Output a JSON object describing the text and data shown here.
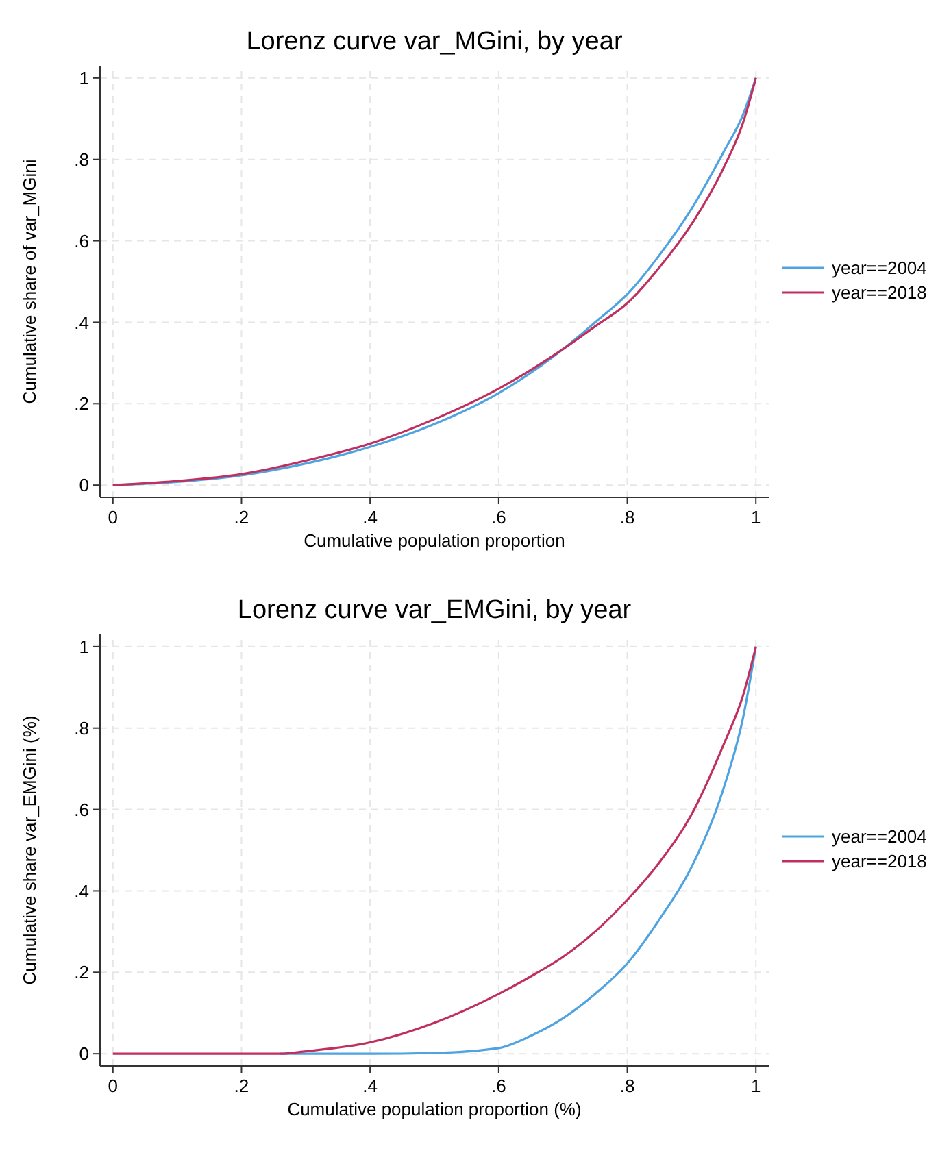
{
  "chart_data": [
    {
      "type": "line",
      "title": "Lorenz curve var_MGini, by year",
      "xlabel": "Cumulative population proportion",
      "ylabel": "Cumulative share of var_MGini",
      "xlim": [
        -0.02,
        1.02
      ],
      "ylim": [
        -0.03,
        1.03
      ],
      "xticks": [
        {
          "value": 0,
          "label": "0"
        },
        {
          "value": 0.2,
          "label": ".2"
        },
        {
          "value": 0.4,
          "label": ".4"
        },
        {
          "value": 0.6,
          "label": ".6"
        },
        {
          "value": 0.8,
          "label": ".8"
        },
        {
          "value": 1,
          "label": "1"
        }
      ],
      "yticks": [
        {
          "value": 0,
          "label": "0"
        },
        {
          "value": 0.2,
          "label": ".2"
        },
        {
          "value": 0.4,
          "label": ".4"
        },
        {
          "value": 0.6,
          "label": ".6"
        },
        {
          "value": 0.8,
          "label": ".8"
        },
        {
          "value": 1,
          "label": "1"
        }
      ],
      "grid": true,
      "legend": "right",
      "line_style": "solid",
      "marker": "none",
      "x": [
        0,
        0.1,
        0.2,
        0.3,
        0.4,
        0.5,
        0.6,
        0.7,
        0.75,
        0.8,
        0.85,
        0.9,
        0.95,
        0.98,
        1
      ],
      "series": [
        {
          "name": "year==2004",
          "color": "#4ea3e0",
          "values": [
            0,
            0.008,
            0.024,
            0.053,
            0.094,
            0.15,
            0.226,
            0.334,
            0.4,
            0.469,
            0.565,
            0.679,
            0.819,
            0.91,
            1
          ]
        },
        {
          "name": "year==2018",
          "color": "#c0305f",
          "values": [
            0,
            0.01,
            0.027,
            0.06,
            0.102,
            0.162,
            0.237,
            0.334,
            0.39,
            0.447,
            0.535,
            0.641,
            0.78,
            0.89,
            1
          ]
        }
      ]
    },
    {
      "type": "line",
      "title": "Lorenz curve var_EMGini, by year",
      "xlabel": "Cumulative population proportion (%)",
      "ylabel": "Cumulative share var_EMGini (%)",
      "xlim": [
        -0.02,
        1.02
      ],
      "ylim": [
        -0.03,
        1.03
      ],
      "xticks": [
        {
          "value": 0,
          "label": "0"
        },
        {
          "value": 0.2,
          "label": ".2"
        },
        {
          "value": 0.4,
          "label": ".4"
        },
        {
          "value": 0.6,
          "label": ".6"
        },
        {
          "value": 0.8,
          "label": ".8"
        },
        {
          "value": 1,
          "label": "1"
        }
      ],
      "yticks": [
        {
          "value": 0,
          "label": "0"
        },
        {
          "value": 0.2,
          "label": ".2"
        },
        {
          "value": 0.4,
          "label": ".4"
        },
        {
          "value": 0.6,
          "label": ".6"
        },
        {
          "value": 0.8,
          "label": ".8"
        },
        {
          "value": 1,
          "label": "1"
        }
      ],
      "grid": true,
      "legend": "right",
      "line_style": "solid",
      "marker": "none",
      "x": [
        0,
        0.1,
        0.2,
        0.26,
        0.3,
        0.4,
        0.5,
        0.6,
        0.65,
        0.7,
        0.75,
        0.8,
        0.85,
        0.9,
        0.95,
        0.98,
        1
      ],
      "series": [
        {
          "name": "year==2004",
          "color": "#4ea3e0",
          "values": [
            null,
            null,
            null,
            0,
            0,
            0,
            0.002,
            0.014,
            0.044,
            0.087,
            0.147,
            0.222,
            0.33,
            0.459,
            0.653,
            0.825,
            1
          ]
        },
        {
          "name": "year==2018",
          "color": "#c0305f",
          "values": [
            0,
            0,
            0,
            0,
            0.006,
            0.028,
            0.076,
            0.147,
            0.19,
            0.238,
            0.3,
            0.378,
            0.47,
            0.588,
            0.76,
            0.88,
            1
          ]
        }
      ]
    }
  ]
}
